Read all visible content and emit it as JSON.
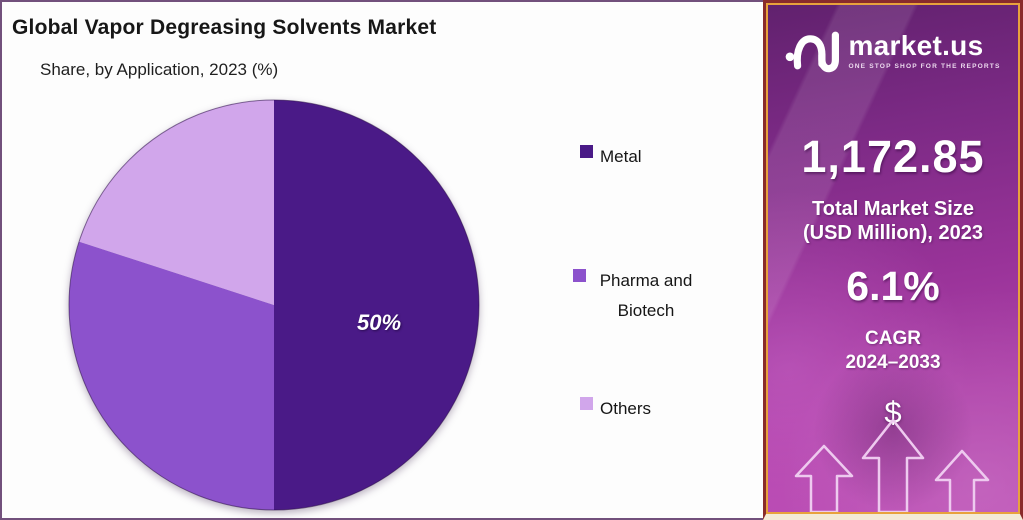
{
  "chart_data": {
    "type": "pie",
    "title": "Global Vapor Degreasing Solvents Market",
    "subtitle": "Share, by Application, 2023 (%)",
    "categories": [
      "Metal",
      "Pharma and Biotech",
      "Others"
    ],
    "values": [
      50,
      30,
      20
    ],
    "colors": [
      "#4a1a87",
      "#8c52cc",
      "#d1a6eb"
    ],
    "data_labels": [
      "50%",
      "",
      ""
    ],
    "start_angle": "top",
    "direction": "clockwise",
    "legend_position": "right"
  },
  "sidebar": {
    "brand_name": "market.us",
    "brand_tagline": "ONE STOP SHOP FOR THE REPORTS",
    "market_size_value": "1,172.85",
    "market_size_label": [
      "Total Market Size",
      "(USD Million), 2023"
    ],
    "cagr_value": "6.1%",
    "cagr_label": [
      "CAGR",
      "2024–2033"
    ],
    "dollar_symbol": "$",
    "colors": {
      "panel_gradient_top": "#61216e",
      "panel_gradient_bottom": "#bb4bb4",
      "border_outer": "#8a2b2b",
      "border_inner": "#e8a23c",
      "arrow_outline": "#eecaef"
    }
  }
}
